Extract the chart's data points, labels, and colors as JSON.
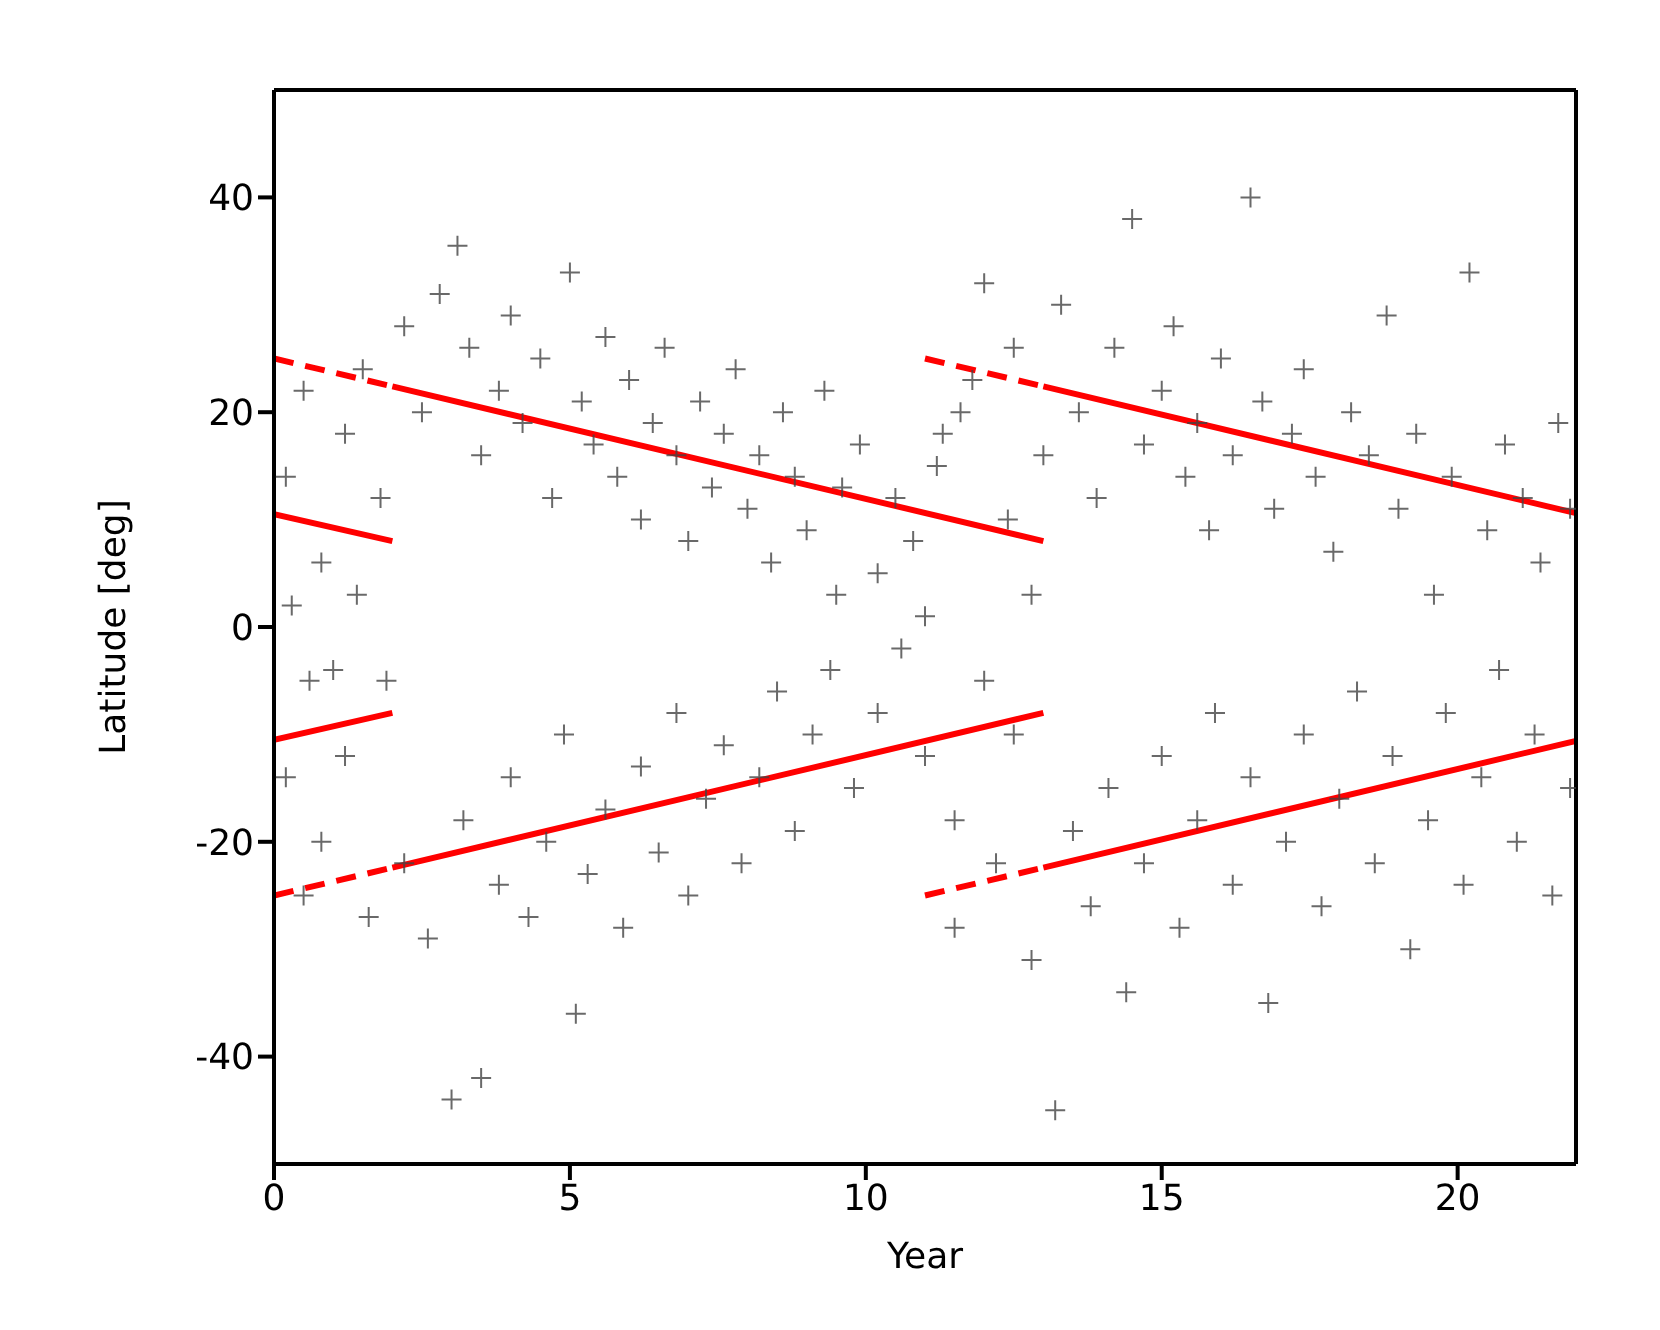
{
  "chart_data": {
    "type": "scatter",
    "xlabel": "Year",
    "ylabel": "Latitude [deg]",
    "xlim": [
      0,
      22
    ],
    "xticks": [
      0,
      5,
      10,
      15,
      20
    ],
    "ylim": [
      -50,
      50
    ],
    "yticks": [
      -40,
      -20,
      0,
      20,
      40
    ],
    "grid": false,
    "legend": false,
    "series": [
      {
        "marker": "cross",
        "color": "#444444",
        "x": [
          0.2,
          0.5,
          0.8,
          1.2,
          1.5,
          1.8,
          2.2,
          2.5,
          2.8,
          3.1,
          3.3,
          3.5,
          3.8,
          4,
          4.2,
          4.5,
          4.7,
          5,
          5.2,
          5.4,
          5.6,
          5.8,
          6,
          6.2,
          6.4,
          6.6,
          6.8,
          7,
          7.2,
          7.4,
          7.6,
          7.8,
          8,
          8.2,
          8.4,
          8.6,
          8.8,
          9,
          9.3,
          9.6,
          9.9,
          10.2,
          10.5,
          10.8,
          11.2,
          11.6,
          12,
          12.4,
          12.8,
          0.3,
          1,
          11,
          11.3,
          11.8,
          12.5,
          13,
          13.3,
          13.6,
          13.9,
          14.2,
          14.5,
          14.7,
          15,
          15.2,
          15.4,
          15.6,
          15.8,
          16,
          16.2,
          16.5,
          16.7,
          16.9,
          17.2,
          17.4,
          17.6,
          17.9,
          18.2,
          18.5,
          18.8,
          19,
          19.3,
          19.6,
          19.9,
          20.2,
          20.5,
          20.8,
          21.1,
          21.4,
          21.7,
          21.9,
          0.2,
          0.5,
          0.8,
          1.2,
          1.6,
          1.9,
          2.2,
          2.6,
          3,
          3.2,
          3.5,
          3.8,
          4,
          4.3,
          4.6,
          4.9,
          5.1,
          5.3,
          5.6,
          5.9,
          6.2,
          6.5,
          6.8,
          7,
          7.3,
          7.6,
          7.9,
          8.2,
          8.5,
          8.8,
          9.1,
          9.4,
          9.8,
          10.2,
          10.6,
          11,
          11.5,
          12,
          12.5,
          0.6,
          1.4,
          9.5,
          11.5,
          12.2,
          12.8,
          13.2,
          13.5,
          13.8,
          14.1,
          14.4,
          14.7,
          15,
          15.3,
          15.6,
          15.9,
          16.2,
          16.5,
          16.8,
          17.1,
          17.4,
          17.7,
          18,
          18.3,
          18.6,
          18.9,
          19.2,
          19.5,
          19.8,
          20.1,
          20.4,
          20.7,
          21,
          21.3,
          21.6,
          21.9
        ],
        "values": [
          14,
          22,
          6,
          18,
          24,
          12,
          28,
          20,
          31,
          35.5,
          26,
          16,
          22,
          29,
          19,
          25,
          12,
          33,
          21,
          17,
          27,
          14,
          23,
          10,
          19,
          26,
          16,
          8,
          21,
          13,
          18,
          24,
          11,
          16,
          6,
          20,
          14,
          9,
          22,
          13,
          17,
          5,
          12,
          8,
          15,
          20,
          32,
          10,
          3,
          2,
          -4,
          1,
          18,
          23,
          26,
          16,
          30,
          20,
          12,
          26,
          38,
          17,
          22,
          28,
          14,
          19,
          9,
          25,
          16,
          40,
          21,
          11,
          18,
          24,
          14,
          7,
          20,
          16,
          29,
          11,
          18,
          3,
          14,
          33,
          9,
          17,
          12,
          6,
          19,
          11,
          -14,
          -25,
          -20,
          -12,
          -27,
          -5,
          -22,
          -29,
          -44,
          -18,
          -42,
          -24,
          -14,
          -27,
          -20,
          -10,
          -36,
          -23,
          -17,
          -28,
          -13,
          -21,
          -8,
          -25,
          -16,
          -11,
          -22,
          -14,
          -6,
          -19,
          -10,
          -4,
          -15,
          -8,
          -2,
          -12,
          -18,
          -5,
          -10,
          -5,
          3,
          3,
          -28,
          -22,
          -31,
          -45,
          -19,
          -26,
          -15,
          -34,
          -22,
          -12,
          -28,
          -18,
          -8,
          -24,
          -14,
          -35,
          -20,
          -10,
          -26,
          -16,
          -6,
          -22,
          -12,
          -30,
          -18,
          -8,
          -24,
          -14,
          -4,
          -20,
          -10,
          -25,
          -15
        ]
      },
      {
        "type": "line",
        "color": "#ff0000",
        "line_style": "solid",
        "x": [
          2,
          13
        ],
        "values": [
          22.4,
          8
        ]
      },
      {
        "type": "line",
        "color": "#ff0000",
        "line_style": "dashed",
        "x": [
          0,
          2
        ],
        "values": [
          25,
          22.4
        ]
      },
      {
        "type": "line",
        "color": "#ff0000",
        "line_style": "solid",
        "x": [
          0,
          2
        ],
        "values": [
          10.5,
          8
        ]
      },
      {
        "type": "line",
        "color": "#ff0000",
        "line_style": "solid",
        "x": [
          2,
          13
        ],
        "values": [
          -22.4,
          -8
        ]
      },
      {
        "type": "line",
        "color": "#ff0000",
        "line_style": "dashed",
        "x": [
          0,
          2
        ],
        "values": [
          -25,
          -22.4
        ]
      },
      {
        "type": "line",
        "color": "#ff0000",
        "line_style": "solid",
        "x": [
          0,
          2
        ],
        "values": [
          -10.5,
          -8
        ]
      },
      {
        "type": "line",
        "color": "#ff0000",
        "line_style": "solid",
        "x": [
          13,
          22
        ],
        "values": [
          22.4,
          10.6
        ]
      },
      {
        "type": "line",
        "color": "#ff0000",
        "line_style": "dashed",
        "x": [
          11,
          13
        ],
        "values": [
          25,
          22.4
        ]
      },
      {
        "type": "line",
        "color": "#ff0000",
        "line_style": "solid",
        "x": [
          13,
          22
        ],
        "values": [
          -22.4,
          -10.6
        ]
      },
      {
        "type": "line",
        "color": "#ff0000",
        "line_style": "dashed",
        "x": [
          11,
          13
        ],
        "values": [
          -25,
          -22.4
        ]
      }
    ]
  }
}
